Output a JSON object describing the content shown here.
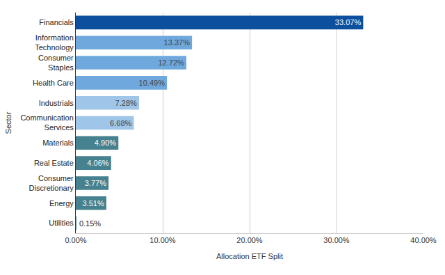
{
  "chart_data": {
    "type": "bar",
    "orientation": "horizontal",
    "x_label": "Allocation ETF Split",
    "y_label": "Sector",
    "categories": [
      "Financials",
      "Information Technology",
      "Consumer Staples",
      "Health Care",
      "Industrials",
      "Communication Services",
      "Materials",
      "Real Estate",
      "Consumer Discretionary",
      "Energy",
      "Utilities"
    ],
    "values": [
      33.07,
      13.37,
      12.72,
      10.49,
      7.28,
      6.68,
      4.9,
      4.06,
      3.77,
      3.51,
      0.15
    ],
    "value_labels": [
      "33.07%",
      "13.37%",
      "12.72%",
      "10.49%",
      "7.28%",
      "6.68%",
      "4.90%",
      "4.06%",
      "3.77%",
      "3.51%",
      "0.15%"
    ],
    "colors": [
      "#0b4f9e",
      "#6fa8dc",
      "#6fa8dc",
      "#6fa8dc",
      "#9fc5e8",
      "#9fc5e8",
      "#45818e",
      "#45818e",
      "#45818e",
      "#45818e",
      "#a2c4c9"
    ],
    "xlim": [
      0,
      40
    ],
    "xticks": [
      {
        "value": 0,
        "label": "0.00%"
      },
      {
        "value": 10,
        "label": "10.00%"
      },
      {
        "value": 20,
        "label": "20.00%"
      },
      {
        "value": 30,
        "label": "30.00%"
      },
      {
        "value": 40,
        "label": "40.00%"
      }
    ],
    "grid": true,
    "data_labels": true
  }
}
